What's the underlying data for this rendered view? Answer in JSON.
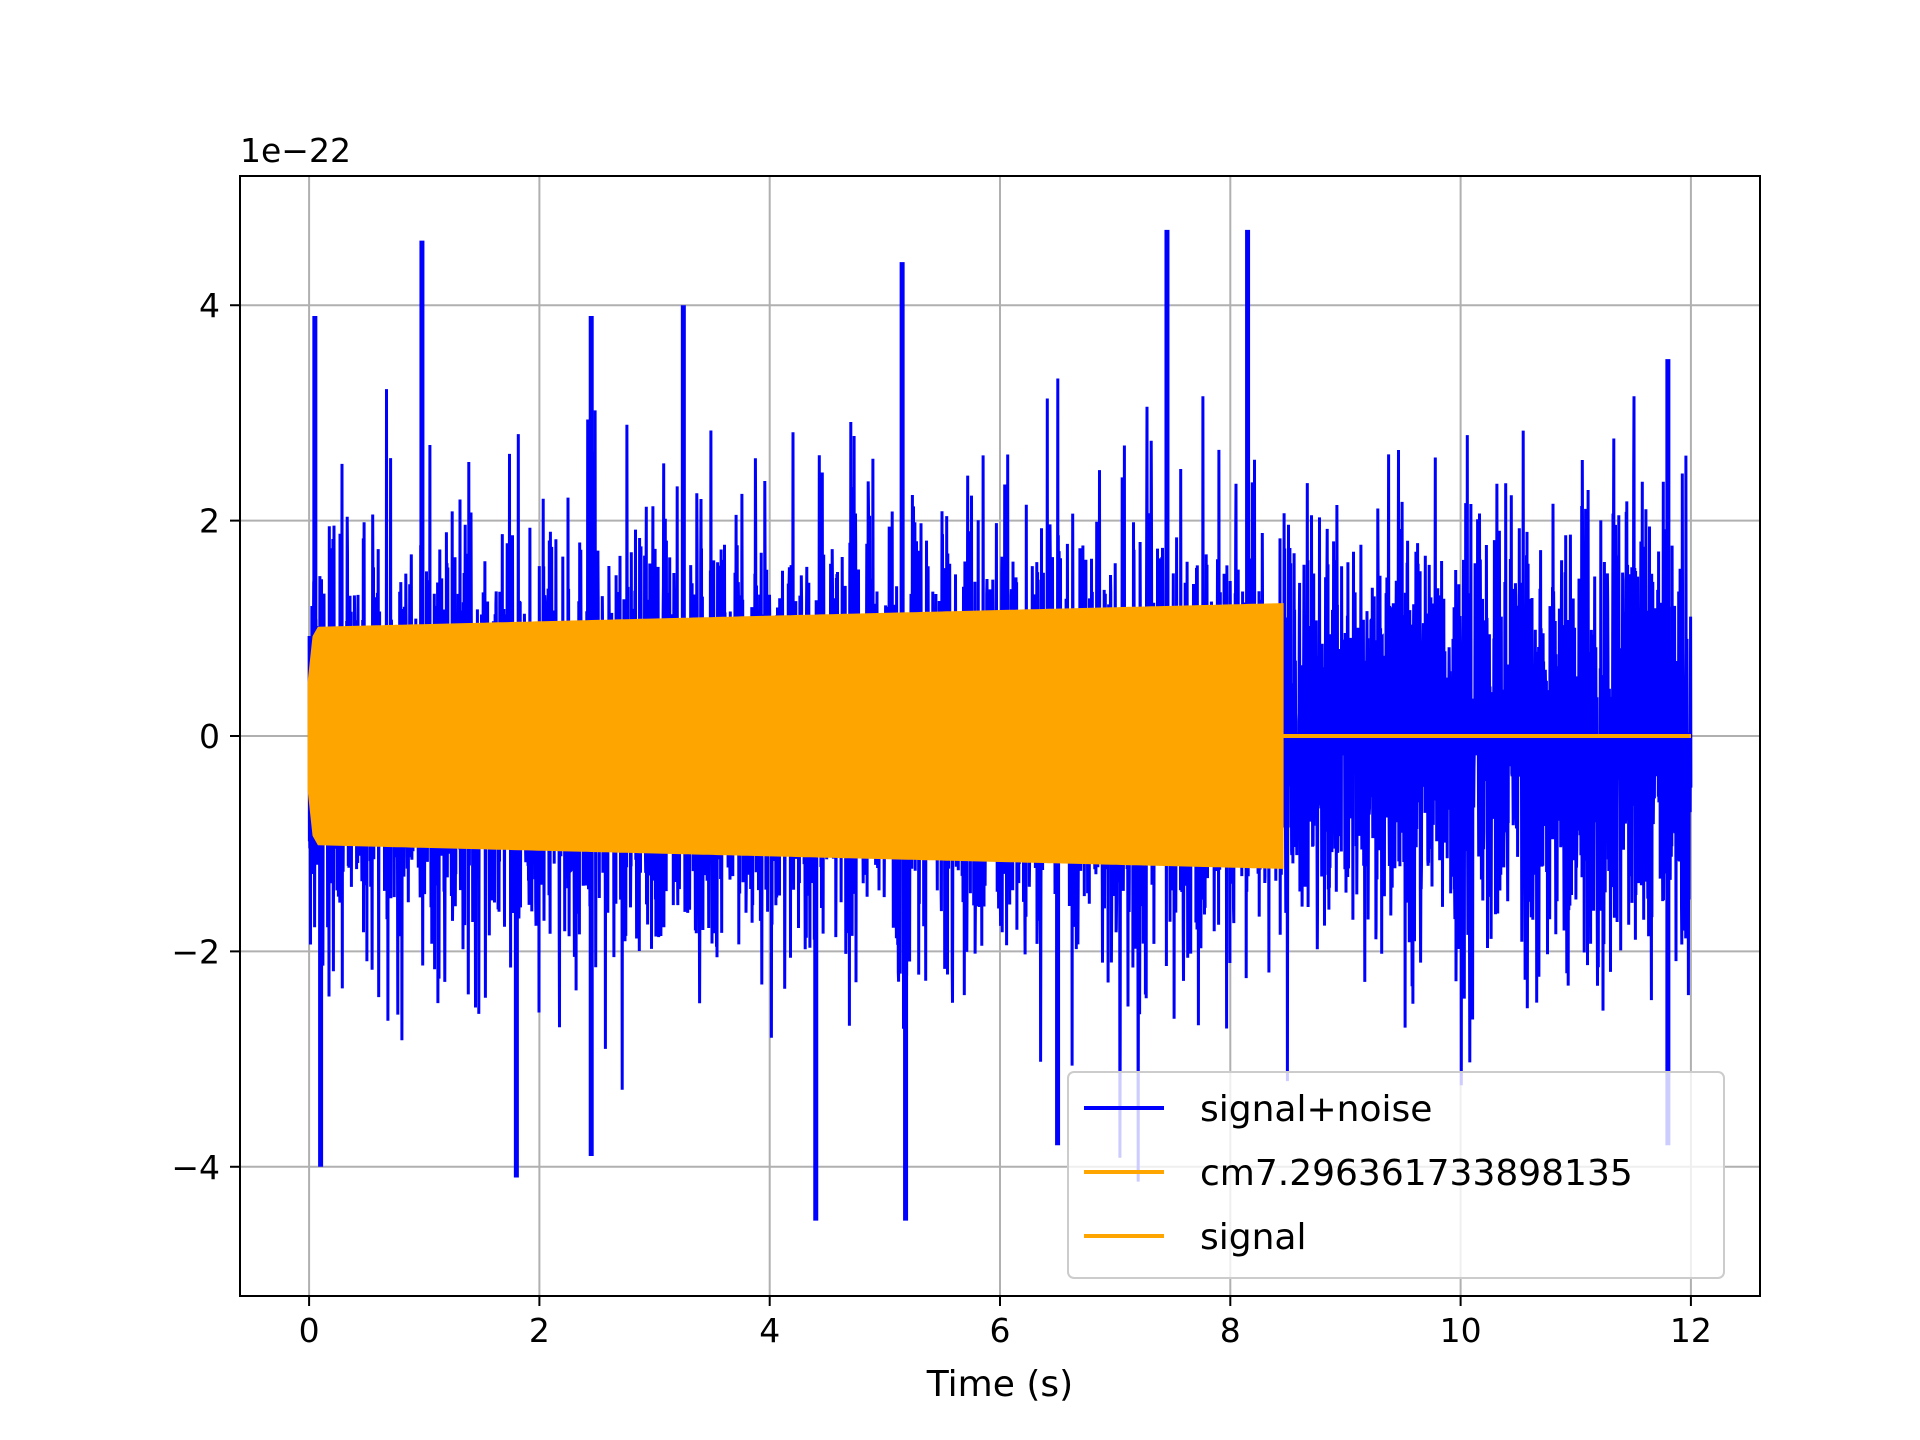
{
  "chart_data": {
    "type": "line",
    "title": "",
    "xlabel": "Time (s)",
    "ylabel": "",
    "y_offset_label": "1e−22",
    "xlim": [
      -0.6,
      12.6
    ],
    "ylim": [
      -5.2,
      5.2
    ],
    "y_unit_scale": 1e-22,
    "xticks": [
      0,
      2,
      4,
      6,
      8,
      10,
      12
    ],
    "xtick_labels": [
      "0",
      "2",
      "4",
      "6",
      "8",
      "10",
      "12"
    ],
    "yticks": [
      -4,
      -2,
      0,
      2,
      4
    ],
    "ytick_labels": [
      "−4",
      "−2",
      "0",
      "2",
      "4"
    ],
    "grid": true,
    "legend_position": "bottom-right",
    "series": [
      {
        "name": "signal+noise",
        "color": "#0000ff",
        "style": "dense noise",
        "x_range": [
          0,
          12
        ],
        "typical_abs_amplitude": 1.8,
        "peaks": [
          {
            "x": 0.05,
            "y": 3.9
          },
          {
            "x": 0.1,
            "y": -4.0
          },
          {
            "x": 0.98,
            "y": 4.6
          },
          {
            "x": 1.8,
            "y": -4.1
          },
          {
            "x": 2.45,
            "y": 3.9
          },
          {
            "x": 2.45,
            "y": -3.9
          },
          {
            "x": 3.25,
            "y": 4.0
          },
          {
            "x": 4.4,
            "y": -4.5
          },
          {
            "x": 5.15,
            "y": 4.4
          },
          {
            "x": 5.18,
            "y": -4.5
          },
          {
            "x": 7.45,
            "y": 4.7
          },
          {
            "x": 8.15,
            "y": 4.7
          },
          {
            "x": 6.5,
            "y": -3.8
          },
          {
            "x": 11.8,
            "y": 3.5
          },
          {
            "x": 11.8,
            "y": -3.8
          }
        ]
      },
      {
        "name": "cm7.296361733898135",
        "color": "#ffa500",
        "style": "line",
        "x": [
          0,
          12
        ],
        "y": [
          0,
          0
        ]
      },
      {
        "name": "signal",
        "color": "#ffa500",
        "style": "oscillation envelope",
        "x_range": [
          0,
          8.45
        ],
        "envelope_x": [
          0,
          0.05,
          8.45
        ],
        "envelope_amplitude": [
          0.5,
          1.0,
          1.22
        ],
        "after_end_value": 0
      }
    ]
  }
}
